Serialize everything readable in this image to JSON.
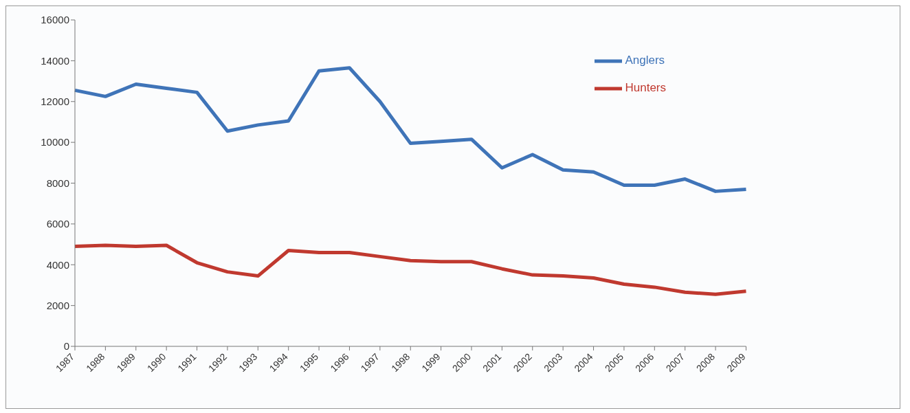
{
  "chart_data": {
    "type": "line",
    "categories": [
      "1987",
      "1988",
      "1989",
      "1990",
      "1991",
      "1992",
      "1993",
      "1994",
      "1995",
      "1996",
      "1997",
      "1998",
      "1999",
      "2000",
      "2001",
      "2002",
      "2003",
      "2004",
      "2005",
      "2006",
      "2007",
      "2008",
      "2009"
    ],
    "series": [
      {
        "name": "Anglers",
        "color": "#3f74b8",
        "values": [
          12550,
          12250,
          12850,
          12650,
          12450,
          10550,
          10850,
          11050,
          13500,
          13650,
          12000,
          9950,
          10050,
          10150,
          8750,
          9400,
          8650,
          8550,
          7900,
          7900,
          8200,
          7600,
          7700
        ]
      },
      {
        "name": "Hunters",
        "color": "#c0392f",
        "values": [
          4900,
          4950,
          4900,
          4950,
          4100,
          3650,
          3450,
          4700,
          4600,
          4600,
          4400,
          4200,
          4150,
          4150,
          3800,
          3500,
          3450,
          3350,
          3050,
          2900,
          2650,
          2550,
          2700
        ]
      }
    ],
    "ylim": [
      0,
      16000
    ],
    "yticks": [
      0,
      2000,
      4000,
      6000,
      8000,
      10000,
      12000,
      14000,
      16000
    ],
    "grid": false,
    "legend": "top right",
    "marker": "none",
    "line_style": "solid"
  }
}
